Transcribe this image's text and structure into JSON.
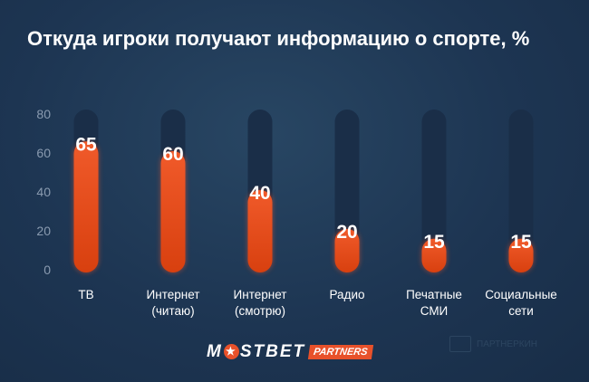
{
  "chart_data": {
    "type": "bar",
    "title": "Откуда игроки получают информацию о спорте, %",
    "categories": [
      [
        "ТВ"
      ],
      [
        "Интернет",
        "(читаю)"
      ],
      [
        "Интернет",
        "(смотрю)"
      ],
      [
        "Радио"
      ],
      [
        "Печатные",
        "СМИ"
      ],
      [
        "Социальные",
        "сети"
      ]
    ],
    "values": [
      65,
      60,
      40,
      20,
      15,
      15
    ],
    "ylim": [
      0,
      80
    ],
    "yticks": [
      "0",
      "20",
      "40",
      "60",
      "80"
    ],
    "grid": false,
    "colors": {
      "bar": "#e8512a",
      "track": "#1a2e48",
      "text": "#ffffff",
      "tick": "#8a9bb0"
    }
  },
  "footer": {
    "logo_text": "MOSTBET",
    "logo_badge": "PARTNERS",
    "watermark": "ПАРТНЕРКИН"
  }
}
